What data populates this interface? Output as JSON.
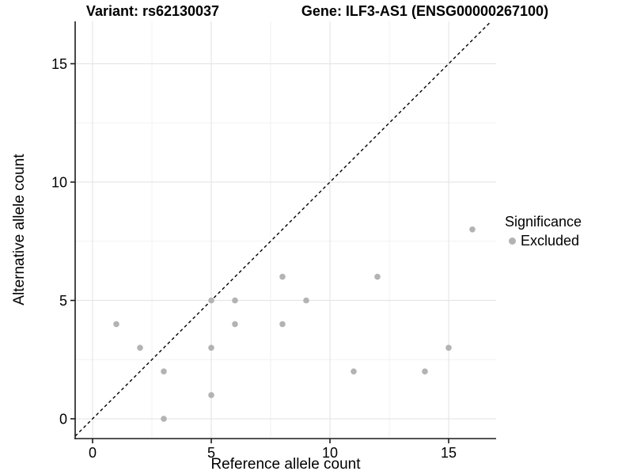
{
  "header": {
    "variant_title": "Variant: rs62130037",
    "gene_title": "Gene: ILF3-AS1 (ENSG00000267100)"
  },
  "chart_data": {
    "type": "scatter",
    "xlabel": "Reference allele count",
    "ylabel": "Alternative allele count",
    "x_ticks": [
      0,
      5,
      10,
      15
    ],
    "y_ticks": [
      0,
      5,
      10,
      15
    ],
    "x_minor_ticks": [
      2.5,
      7.5,
      12.5
    ],
    "y_minor_ticks": [
      2.5,
      7.5,
      12.5
    ],
    "xlim": [
      -0.8,
      17.0
    ],
    "ylim": [
      -0.85,
      16.8
    ],
    "grid": true,
    "reference_line": {
      "type": "identity",
      "style": "dashed",
      "color": "#000000"
    },
    "series": [
      {
        "name": "Excluded",
        "color": "#b3b3b3",
        "points": [
          [
            1,
            4
          ],
          [
            2,
            3
          ],
          [
            3,
            0
          ],
          [
            3,
            2
          ],
          [
            5,
            1
          ],
          [
            5,
            3
          ],
          [
            5,
            5
          ],
          [
            6,
            4
          ],
          [
            6,
            5
          ],
          [
            8,
            4
          ],
          [
            8,
            6
          ],
          [
            9,
            5
          ],
          [
            11,
            2
          ],
          [
            12,
            6
          ],
          [
            14,
            2
          ],
          [
            15,
            3
          ],
          [
            16,
            8
          ]
        ]
      }
    ],
    "legend": {
      "title": "Significance",
      "position": "right",
      "items": [
        {
          "label": "Excluded",
          "color": "#b3b3b3"
        }
      ]
    },
    "colors": {
      "axis": "#1a1a1a",
      "grid_major": "#e6e6e6",
      "grid_minor": "#f2f2f2",
      "tick_text": "#000000"
    }
  }
}
